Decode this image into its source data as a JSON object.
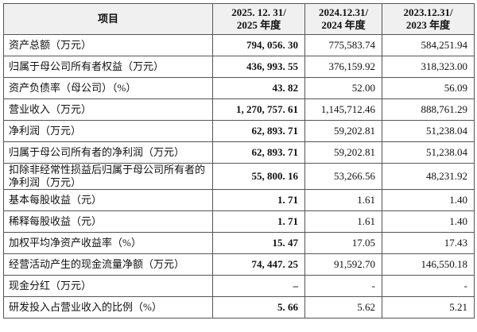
{
  "table": {
    "header": [
      [
        "项目"
      ],
      [
        "2025. 12. 31/",
        "2025 年度"
      ],
      [
        "2024.12.31/",
        "2024 年度"
      ],
      [
        "2023.12.31/",
        "2023 年度"
      ]
    ],
    "rows": [
      [
        "资产总额（万元）",
        "794, 056. 30",
        "775,583.74",
        "584,251.94"
      ],
      [
        "归属于母公司所有者权益（万元）",
        "436, 993. 55",
        "376,159.92",
        "318,323.00"
      ],
      [
        "资产负债率（母公司）（%）",
        "43. 82",
        "52.00",
        "56.09"
      ],
      [
        "营业收入（万元）",
        "1, 270, 757. 61",
        "1,145,712.46",
        "888,761.29"
      ],
      [
        "净利润（万元）",
        "62, 893. 71",
        "59,202.81",
        "51,238.04"
      ],
      [
        "归属于母公司所有者的净利润（万元）",
        "62, 893. 71",
        "59,202.81",
        "51,238.04"
      ],
      [
        "扣除非经常性损益后归属于母公司所有者的净利润（万元）",
        "55, 800. 16",
        "53,266.56",
        "48,231.92"
      ],
      [
        "基本每股收益（元）",
        "1. 71",
        "1.61",
        "1.40"
      ],
      [
        "稀释每股收益（元）",
        "1. 71",
        "1.61",
        "1.40"
      ],
      [
        "加权平均净资产收益率（%）",
        "15. 47",
        "17.05",
        "17.43"
      ],
      [
        "经营活动产生的现金流量净额（万元）",
        "74, 447. 25",
        "91,592.70",
        "146,550.18"
      ],
      [
        "现金分红（万元）",
        "–",
        "-",
        "-"
      ],
      [
        "研发投入占营业收入的比例（%）",
        "5. 66",
        "5.62",
        "5.21"
      ]
    ]
  }
}
